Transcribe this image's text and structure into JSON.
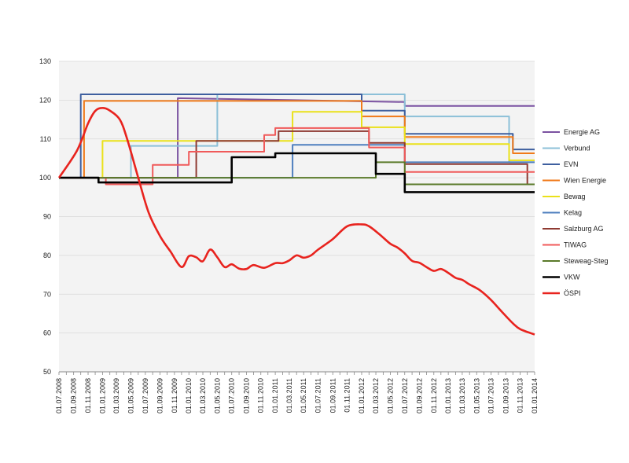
{
  "chart_data": {
    "type": "line",
    "title": "",
    "xlabel": "",
    "ylabel": "",
    "ylim": [
      50,
      130
    ],
    "yticks": [
      50,
      60,
      70,
      80,
      90,
      100,
      110,
      120,
      130
    ],
    "xlim": [
      "2008-07-01",
      "2014-01-01"
    ],
    "xticks": [
      "01.07.2008",
      "01.09.2008",
      "01.11.2008",
      "01.01.2009",
      "01.03.2009",
      "01.05.2009",
      "01.07.2009",
      "01.09.2009",
      "01.11.2009",
      "01.01.2010",
      "01.03.2010",
      "01.05.2010",
      "01.07.2010",
      "01.09.2010",
      "01.11.2010",
      "01.01.2011",
      "01.03.2011",
      "01.05.2011",
      "01.07.2011",
      "01.09.2011",
      "01.11.2011",
      "01.01.2012",
      "01.03.2012",
      "01.05.2012",
      "01.07.2012",
      "01.09.2012",
      "01.11.2012",
      "01.01.2013",
      "01.03.2013",
      "01.05.2013",
      "01.07.2013",
      "01.09.2013",
      "01.11.2013",
      "01.01.2014"
    ],
    "grid": true,
    "legend_position": "right",
    "series": [
      {
        "name": "Energie AG",
        "color": "#7b52a1",
        "step": true,
        "width": 2,
        "points": [
          [
            "2008-07-01",
            100
          ],
          [
            "2009-11-15",
            100
          ],
          [
            "2009-11-15",
            120.5
          ],
          [
            "2012-07-01",
            119.5
          ],
          [
            "2012-07-01",
            118.5
          ],
          [
            "2014-01-01",
            118.5
          ]
        ]
      },
      {
        "name": "Verbund",
        "color": "#8cc0d8",
        "step": true,
        "width": 2,
        "points": [
          [
            "2008-07-01",
            100
          ],
          [
            "2009-05-01",
            100
          ],
          [
            "2009-05-01",
            108.2
          ],
          [
            "2010-05-01",
            108.2
          ],
          [
            "2010-05-01",
            121.5
          ],
          [
            "2012-07-01",
            121.5
          ],
          [
            "2012-07-01",
            115.8
          ],
          [
            "2013-09-15",
            115.8
          ],
          [
            "2013-09-15",
            104
          ],
          [
            "2014-01-01",
            104
          ]
        ]
      },
      {
        "name": "EVN",
        "color": "#3e5f9f",
        "step": true,
        "width": 2,
        "points": [
          [
            "2008-07-01",
            100
          ],
          [
            "2008-10-01",
            100
          ],
          [
            "2008-10-01",
            121.5
          ],
          [
            "2012-01-01",
            121.5
          ],
          [
            "2012-01-01",
            117.3
          ],
          [
            "2012-07-01",
            117.3
          ],
          [
            "2012-07-01",
            111.3
          ],
          [
            "2013-10-01",
            111.3
          ],
          [
            "2013-10-01",
            107.3
          ],
          [
            "2014-01-01",
            107.3
          ]
        ]
      },
      {
        "name": "Wien Energie",
        "color": "#f07a1a",
        "step": true,
        "width": 2,
        "points": [
          [
            "2008-07-01",
            100
          ],
          [
            "2008-10-15",
            100
          ],
          [
            "2008-10-15",
            119.8
          ],
          [
            "2012-01-01",
            119.8
          ],
          [
            "2012-01-01",
            115.8
          ],
          [
            "2012-07-01",
            115.8
          ],
          [
            "2012-07-01",
            110.5
          ],
          [
            "2013-10-01",
            110.5
          ],
          [
            "2013-10-01",
            106.3
          ],
          [
            "2014-01-01",
            106.3
          ]
        ]
      },
      {
        "name": "Bewag",
        "color": "#eae11a",
        "step": true,
        "width": 2,
        "points": [
          [
            "2008-07-01",
            100
          ],
          [
            "2009-01-01",
            100
          ],
          [
            "2009-01-01",
            109.5
          ],
          [
            "2011-01-15",
            109.5
          ],
          [
            "2011-03-15",
            109.5
          ],
          [
            "2011-03-15",
            117
          ],
          [
            "2012-01-01",
            117
          ],
          [
            "2012-01-01",
            113
          ],
          [
            "2012-07-01",
            113
          ],
          [
            "2012-07-01",
            108.7
          ],
          [
            "2013-09-15",
            108.7
          ],
          [
            "2013-09-15",
            104.5
          ],
          [
            "2014-01-01",
            104.5
          ]
        ]
      },
      {
        "name": "Kelag",
        "color": "#4e7fbf",
        "step": true,
        "width": 2,
        "points": [
          [
            "2008-07-01",
            100
          ],
          [
            "2011-03-15",
            100
          ],
          [
            "2011-03-15",
            108.5
          ],
          [
            "2012-01-01",
            108.5
          ],
          [
            "2012-01-01",
            108.5
          ],
          [
            "2012-07-01",
            108.5
          ],
          [
            "2012-07-01",
            104
          ],
          [
            "2014-01-01",
            104
          ]
        ]
      },
      {
        "name": "Salzburg AG",
        "color": "#8f3a32",
        "step": true,
        "width": 2,
        "points": [
          [
            "2008-07-01",
            100
          ],
          [
            "2010-02-01",
            100
          ],
          [
            "2010-02-01",
            109.5
          ],
          [
            "2010-11-15",
            109.5
          ],
          [
            "2010-11-15",
            109.5
          ],
          [
            "2011-01-15",
            109.5
          ],
          [
            "2011-01-15",
            112
          ],
          [
            "2012-02-01",
            112
          ],
          [
            "2012-02-01",
            109
          ],
          [
            "2012-07-01",
            109
          ],
          [
            "2012-07-01",
            103.5
          ],
          [
            "2013-12-01",
            103.5
          ],
          [
            "2013-12-01",
            98.3
          ],
          [
            "2014-01-01",
            98.3
          ]
        ]
      },
      {
        "name": "TIWAG",
        "color": "#f05a5a",
        "step": true,
        "width": 2,
        "points": [
          [
            "2008-07-01",
            100
          ],
          [
            "2009-01-15",
            100
          ],
          [
            "2009-01-15",
            98.3
          ],
          [
            "2009-08-01",
            98.3
          ],
          [
            "2009-08-01",
            103.3
          ],
          [
            "2010-01-01",
            103.3
          ],
          [
            "2010-01-01",
            106.7
          ],
          [
            "2010-11-15",
            106.7
          ],
          [
            "2010-11-15",
            111
          ],
          [
            "2011-01-01",
            111
          ],
          [
            "2011-01-01",
            112.8
          ],
          [
            "2012-02-01",
            112.8
          ],
          [
            "2012-02-01",
            107.8
          ],
          [
            "2012-07-01",
            107.8
          ],
          [
            "2012-07-01",
            101.5
          ],
          [
            "2014-01-01",
            101.5
          ]
        ]
      },
      {
        "name": "Steweag-Steg",
        "color": "#5a7a2a",
        "step": true,
        "width": 2,
        "points": [
          [
            "2008-07-01",
            100
          ],
          [
            "2012-03-01",
            100
          ],
          [
            "2012-03-01",
            104
          ],
          [
            "2012-07-01",
            104
          ],
          [
            "2012-07-01",
            98.3
          ],
          [
            "2014-01-01",
            98.3
          ]
        ]
      },
      {
        "name": "VKW",
        "color": "#000000",
        "step": true,
        "width": 2.6,
        "points": [
          [
            "2008-07-01",
            100
          ],
          [
            "2008-12-15",
            100
          ],
          [
            "2008-12-15",
            98.8
          ],
          [
            "2010-07-01",
            98.8
          ],
          [
            "2010-07-01",
            105.3
          ],
          [
            "2011-01-01",
            105.3
          ],
          [
            "2011-01-01",
            106.3
          ],
          [
            "2012-03-01",
            106.3
          ],
          [
            "2012-03-01",
            101
          ],
          [
            "2012-07-01",
            101
          ],
          [
            "2012-07-01",
            96.3
          ],
          [
            "2014-01-01",
            96.3
          ]
        ]
      },
      {
        "name": "ÖSPI",
        "color": "#e8231e",
        "step": false,
        "width": 2.6,
        "points": [
          [
            "2008-07-01",
            100
          ],
          [
            "2008-09-15",
            107
          ],
          [
            "2008-11-01",
            114
          ],
          [
            "2008-12-01",
            117.2
          ],
          [
            "2009-01-01",
            118
          ],
          [
            "2009-02-01",
            117.3
          ],
          [
            "2009-03-15",
            115
          ],
          [
            "2009-04-15",
            110
          ],
          [
            "2009-06-01",
            100
          ],
          [
            "2009-07-15",
            91
          ],
          [
            "2009-09-01",
            85
          ],
          [
            "2009-10-15",
            81
          ],
          [
            "2009-12-01",
            77
          ],
          [
            "2010-01-01",
            79.8
          ],
          [
            "2010-02-01",
            79.5
          ],
          [
            "2010-03-01",
            78.5
          ],
          [
            "2010-04-01",
            81.5
          ],
          [
            "2010-05-01",
            79.5
          ],
          [
            "2010-06-01",
            77
          ],
          [
            "2010-07-01",
            77.7
          ],
          [
            "2010-08-01",
            76.6
          ],
          [
            "2010-09-01",
            76.5
          ],
          [
            "2010-10-01",
            77.5
          ],
          [
            "2010-11-15",
            76.8
          ],
          [
            "2011-01-01",
            78
          ],
          [
            "2011-02-01",
            78
          ],
          [
            "2011-03-01",
            78.7
          ],
          [
            "2011-04-01",
            80
          ],
          [
            "2011-05-01",
            79.4
          ],
          [
            "2011-06-01",
            80
          ],
          [
            "2011-07-01",
            81.5
          ],
          [
            "2011-09-01",
            84.2
          ],
          [
            "2011-11-01",
            87.5
          ],
          [
            "2012-01-01",
            88
          ],
          [
            "2012-02-01",
            87.5
          ],
          [
            "2012-03-15",
            85.5
          ],
          [
            "2012-05-01",
            83
          ],
          [
            "2012-06-01",
            82
          ],
          [
            "2012-07-01",
            80.5
          ],
          [
            "2012-08-01",
            78.6
          ],
          [
            "2012-09-01",
            78.1
          ],
          [
            "2012-10-01",
            77
          ],
          [
            "2012-11-01",
            76
          ],
          [
            "2012-12-01",
            76.5
          ],
          [
            "2013-01-01",
            75.5
          ],
          [
            "2013-02-01",
            74.2
          ],
          [
            "2013-03-01",
            73.7
          ],
          [
            "2013-04-01",
            72.5
          ],
          [
            "2013-05-15",
            71
          ],
          [
            "2013-07-01",
            68.5
          ],
          [
            "2013-08-15",
            65.5
          ],
          [
            "2013-10-01",
            62.5
          ],
          [
            "2013-11-01",
            61
          ],
          [
            "2014-01-01",
            59.6
          ]
        ]
      }
    ]
  }
}
